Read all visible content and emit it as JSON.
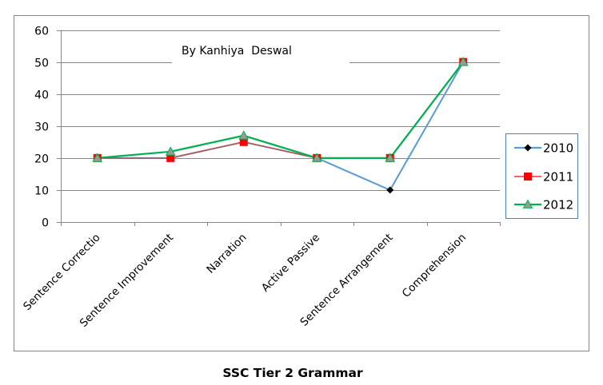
{
  "chart_data": {
    "type": "line",
    "title": "SSC Tier 2 Grammar",
    "annotation": "By Kanhiya  Deswal",
    "xlabel": "",
    "ylabel": "",
    "ylim": [
      0,
      60
    ],
    "yticks": [
      0,
      10,
      20,
      30,
      40,
      50,
      60
    ],
    "grid": true,
    "legend_position": "right",
    "categories": [
      "Sentence Correctio",
      "Sentence Improvement",
      "Narration",
      "Active Passive",
      "Sentence Arrangement",
      "Comprehension"
    ],
    "series": [
      {
        "name": "2010",
        "values": [
          20,
          20,
          25,
          20,
          10,
          50
        ],
        "color": "#5b9bd5",
        "marker": "diamond",
        "marker_color": "#000000"
      },
      {
        "name": "2011",
        "values": [
          20,
          20,
          25,
          20,
          20,
          50
        ],
        "color": "#c0504d",
        "marker": "square",
        "marker_color": "#ff0000"
      },
      {
        "name": "2012",
        "values": [
          20,
          22,
          27,
          20,
          20,
          50
        ],
        "color": "#00b050",
        "marker": "triangle",
        "marker_color": "#9a9a9a"
      }
    ]
  },
  "colors": {
    "frame": "#868686",
    "grid": "#868686",
    "legend_border": "#4f81bd"
  }
}
